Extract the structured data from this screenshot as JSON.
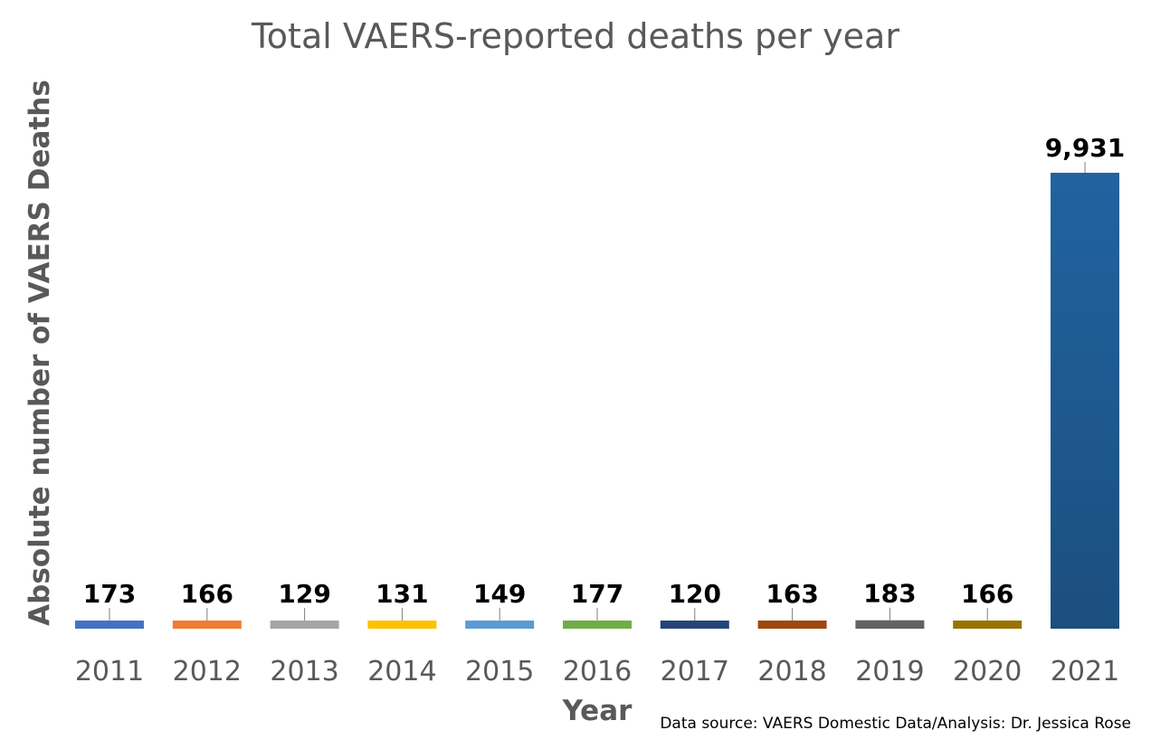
{
  "chart_data": {
    "type": "bar",
    "title": "Total VAERS-reported deaths per year",
    "xlabel": "Year",
    "ylabel": "Absolute number of VAERS Deaths",
    "categories": [
      "2011",
      "2012",
      "2013",
      "2014",
      "2015",
      "2016",
      "2017",
      "2018",
      "2019",
      "2020",
      "2021"
    ],
    "values": [
      173,
      166,
      129,
      131,
      149,
      177,
      120,
      163,
      183,
      166,
      9931
    ],
    "data_labels": [
      "173",
      "166",
      "129",
      "131",
      "149",
      "177",
      "120",
      "163",
      "183",
      "166",
      "9,931"
    ],
    "colors": [
      "#4472C4",
      "#ED7D31",
      "#A5A5A5",
      "#FFC000",
      "#5B9BD5",
      "#70AD47",
      "#264478",
      "#9E480E",
      "#636363",
      "#997300",
      "#255E91"
    ],
    "ylim": [
      0,
      9931
    ],
    "grid": false,
    "legend": "none",
    "source_note": "Data source: VAERS Domestic Data/Analysis: Dr. Jessica Rose"
  }
}
